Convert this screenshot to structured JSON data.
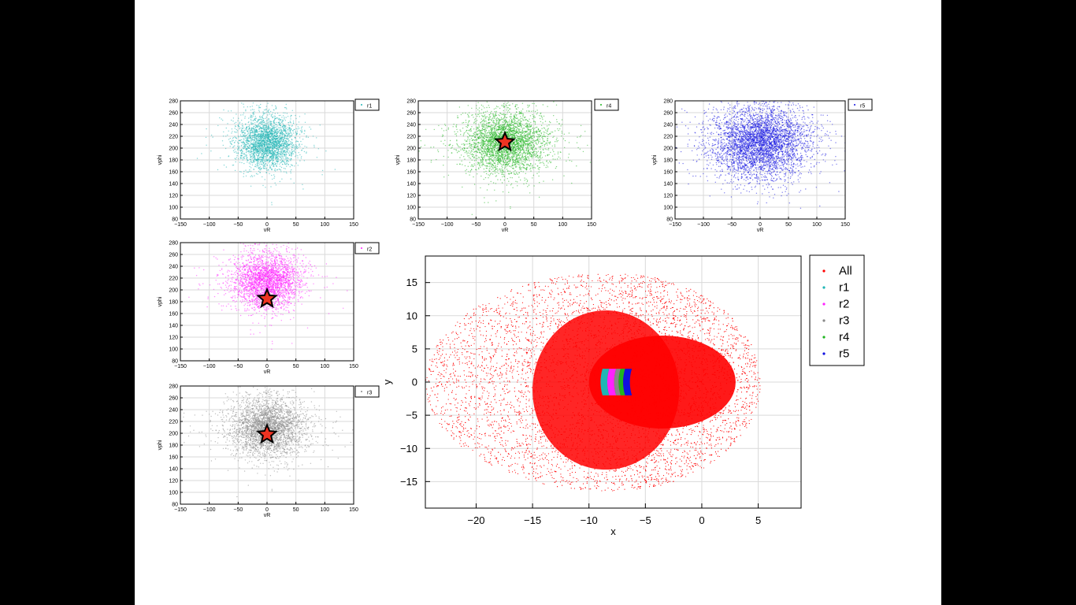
{
  "chart_data": [
    {
      "id": "r1",
      "type": "scatter",
      "series": [
        {
          "name": "r1",
          "color": "#1fb5b5"
        }
      ],
      "center": [
        0,
        210
      ],
      "spread": [
        25,
        22
      ],
      "marker": null,
      "xlabel": "vR",
      "ylabel": "vphi",
      "xlim": [
        -150,
        150
      ],
      "ylim": [
        80,
        280
      ],
      "xticks": [
        -150,
        -100,
        -50,
        0,
        50,
        100,
        150
      ],
      "yticks": [
        80,
        100,
        120,
        140,
        160,
        180,
        200,
        220,
        240,
        260,
        280
      ],
      "grid": true,
      "legend": "outside-right"
    },
    {
      "id": "r4",
      "type": "scatter",
      "series": [
        {
          "name": "r4",
          "color": "#1fb51f"
        }
      ],
      "center": [
        0,
        210
      ],
      "spread": [
        35,
        25
      ],
      "marker": [
        0,
        210
      ],
      "xlabel": "vR",
      "ylabel": "vphi",
      "xlim": [
        -150,
        150
      ],
      "ylim": [
        80,
        280
      ],
      "xticks": [
        -150,
        -100,
        -50,
        0,
        50,
        100,
        150
      ],
      "yticks": [
        80,
        100,
        120,
        140,
        160,
        180,
        200,
        220,
        240,
        260,
        280
      ],
      "grid": true,
      "legend": "outside-right"
    },
    {
      "id": "r5",
      "type": "scatter",
      "series": [
        {
          "name": "r5",
          "color": "#1010e0"
        }
      ],
      "center": [
        0,
        210
      ],
      "spread": [
        42,
        30
      ],
      "marker": null,
      "xlabel": "vR",
      "ylabel": "vphi",
      "xlim": [
        -150,
        150
      ],
      "ylim": [
        80,
        280
      ],
      "xticks": [
        -150,
        -100,
        -50,
        0,
        50,
        100,
        150
      ],
      "yticks": [
        80,
        100,
        120,
        140,
        160,
        180,
        200,
        220,
        240,
        260,
        280
      ],
      "grid": true,
      "legend": "outside-right"
    },
    {
      "id": "r2",
      "type": "scatter",
      "series": [
        {
          "name": "r2",
          "color": "#ff22ff"
        }
      ],
      "center": [
        0,
        215
      ],
      "spread": [
        28,
        22
      ],
      "marker": [
        0,
        185
      ],
      "xlabel": "vR",
      "ylabel": "vphi",
      "xlim": [
        -150,
        150
      ],
      "ylim": [
        80,
        280
      ],
      "xticks": [
        -150,
        -100,
        -50,
        0,
        50,
        100,
        150
      ],
      "yticks": [
        80,
        100,
        120,
        140,
        160,
        180,
        200,
        220,
        240,
        260,
        280
      ],
      "grid": true,
      "legend": "outside-right"
    },
    {
      "id": "r3",
      "type": "scatter",
      "series": [
        {
          "name": "r3",
          "color": "#888888"
        }
      ],
      "center": [
        0,
        210
      ],
      "spread": [
        32,
        24
      ],
      "marker": [
        0,
        198
      ],
      "xlabel": "vR",
      "ylabel": "vphi",
      "xlim": [
        -150,
        150
      ],
      "ylim": [
        80,
        280
      ],
      "xticks": [
        -150,
        -100,
        -50,
        0,
        50,
        100,
        150
      ],
      "yticks": [
        80,
        100,
        120,
        140,
        160,
        180,
        200,
        220,
        240,
        260,
        280
      ],
      "grid": true,
      "legend": "outside-right"
    },
    {
      "id": "main",
      "type": "scatter",
      "series": [
        {
          "name": "All",
          "color": "#ff0000"
        },
        {
          "name": "r1",
          "color": "#1fb5b5",
          "x_range": [
            -8.8,
            -8.2
          ]
        },
        {
          "name": "r2",
          "color": "#ff22ff",
          "x_range": [
            -8.2,
            -7.6
          ]
        },
        {
          "name": "r3",
          "color": "#888888",
          "x_range": [
            -7.6,
            -7.2
          ]
        },
        {
          "name": "r4",
          "color": "#1fb51f",
          "x_range": [
            -7.2,
            -6.8
          ]
        },
        {
          "name": "r5",
          "color": "#1010e0",
          "x_range": [
            -6.8,
            -6.2
          ]
        }
      ],
      "xlabel": "x",
      "ylabel": "y",
      "xlim": [
        -24.5,
        8.8
      ],
      "ylim": [
        -19,
        19
      ],
      "xticks": [
        -20,
        -15,
        -10,
        -5,
        0,
        5
      ],
      "yticks": [
        -15,
        -10,
        -5,
        0,
        5,
        10,
        15
      ],
      "grid": true,
      "legend": "outside-right"
    }
  ]
}
